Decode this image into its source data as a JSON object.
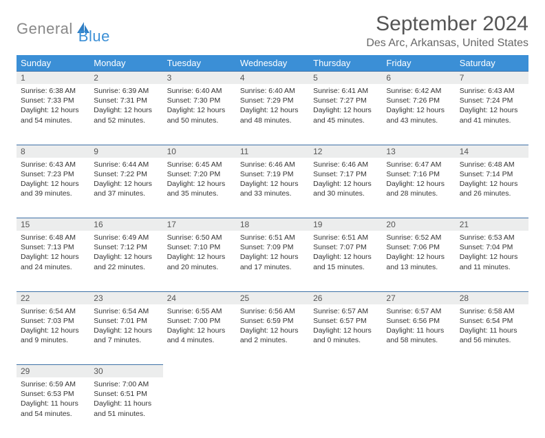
{
  "brand": {
    "part1": "General",
    "part2": "Blue"
  },
  "title": "September 2024",
  "location": "Des Arc, Arkansas, United States",
  "colors": {
    "accent": "#3b8fd6",
    "header_bg": "#3b8fd6",
    "dayrow_bg": "#eceded",
    "border": "#3b6fa6",
    "text": "#333333",
    "muted": "#666666"
  },
  "weekdays": [
    "Sunday",
    "Monday",
    "Tuesday",
    "Wednesday",
    "Thursday",
    "Friday",
    "Saturday"
  ],
  "weeks": [
    [
      {
        "n": "1",
        "sr": "6:38 AM",
        "ss": "7:33 PM",
        "dl": "12 hours and 54 minutes."
      },
      {
        "n": "2",
        "sr": "6:39 AM",
        "ss": "7:31 PM",
        "dl": "12 hours and 52 minutes."
      },
      {
        "n": "3",
        "sr": "6:40 AM",
        "ss": "7:30 PM",
        "dl": "12 hours and 50 minutes."
      },
      {
        "n": "4",
        "sr": "6:40 AM",
        "ss": "7:29 PM",
        "dl": "12 hours and 48 minutes."
      },
      {
        "n": "5",
        "sr": "6:41 AM",
        "ss": "7:27 PM",
        "dl": "12 hours and 45 minutes."
      },
      {
        "n": "6",
        "sr": "6:42 AM",
        "ss": "7:26 PM",
        "dl": "12 hours and 43 minutes."
      },
      {
        "n": "7",
        "sr": "6:43 AM",
        "ss": "7:24 PM",
        "dl": "12 hours and 41 minutes."
      }
    ],
    [
      {
        "n": "8",
        "sr": "6:43 AM",
        "ss": "7:23 PM",
        "dl": "12 hours and 39 minutes."
      },
      {
        "n": "9",
        "sr": "6:44 AM",
        "ss": "7:22 PM",
        "dl": "12 hours and 37 minutes."
      },
      {
        "n": "10",
        "sr": "6:45 AM",
        "ss": "7:20 PM",
        "dl": "12 hours and 35 minutes."
      },
      {
        "n": "11",
        "sr": "6:46 AM",
        "ss": "7:19 PM",
        "dl": "12 hours and 33 minutes."
      },
      {
        "n": "12",
        "sr": "6:46 AM",
        "ss": "7:17 PM",
        "dl": "12 hours and 30 minutes."
      },
      {
        "n": "13",
        "sr": "6:47 AM",
        "ss": "7:16 PM",
        "dl": "12 hours and 28 minutes."
      },
      {
        "n": "14",
        "sr": "6:48 AM",
        "ss": "7:14 PM",
        "dl": "12 hours and 26 minutes."
      }
    ],
    [
      {
        "n": "15",
        "sr": "6:48 AM",
        "ss": "7:13 PM",
        "dl": "12 hours and 24 minutes."
      },
      {
        "n": "16",
        "sr": "6:49 AM",
        "ss": "7:12 PM",
        "dl": "12 hours and 22 minutes."
      },
      {
        "n": "17",
        "sr": "6:50 AM",
        "ss": "7:10 PM",
        "dl": "12 hours and 20 minutes."
      },
      {
        "n": "18",
        "sr": "6:51 AM",
        "ss": "7:09 PM",
        "dl": "12 hours and 17 minutes."
      },
      {
        "n": "19",
        "sr": "6:51 AM",
        "ss": "7:07 PM",
        "dl": "12 hours and 15 minutes."
      },
      {
        "n": "20",
        "sr": "6:52 AM",
        "ss": "7:06 PM",
        "dl": "12 hours and 13 minutes."
      },
      {
        "n": "21",
        "sr": "6:53 AM",
        "ss": "7:04 PM",
        "dl": "12 hours and 11 minutes."
      }
    ],
    [
      {
        "n": "22",
        "sr": "6:54 AM",
        "ss": "7:03 PM",
        "dl": "12 hours and 9 minutes."
      },
      {
        "n": "23",
        "sr": "6:54 AM",
        "ss": "7:01 PM",
        "dl": "12 hours and 7 minutes."
      },
      {
        "n": "24",
        "sr": "6:55 AM",
        "ss": "7:00 PM",
        "dl": "12 hours and 4 minutes."
      },
      {
        "n": "25",
        "sr": "6:56 AM",
        "ss": "6:59 PM",
        "dl": "12 hours and 2 minutes."
      },
      {
        "n": "26",
        "sr": "6:57 AM",
        "ss": "6:57 PM",
        "dl": "12 hours and 0 minutes."
      },
      {
        "n": "27",
        "sr": "6:57 AM",
        "ss": "6:56 PM",
        "dl": "11 hours and 58 minutes."
      },
      {
        "n": "28",
        "sr": "6:58 AM",
        "ss": "6:54 PM",
        "dl": "11 hours and 56 minutes."
      }
    ],
    [
      {
        "n": "29",
        "sr": "6:59 AM",
        "ss": "6:53 PM",
        "dl": "11 hours and 54 minutes."
      },
      {
        "n": "30",
        "sr": "7:00 AM",
        "ss": "6:51 PM",
        "dl": "11 hours and 51 minutes."
      },
      null,
      null,
      null,
      null,
      null
    ]
  ],
  "labels": {
    "sunrise": "Sunrise:",
    "sunset": "Sunset:",
    "daylight": "Daylight:"
  }
}
